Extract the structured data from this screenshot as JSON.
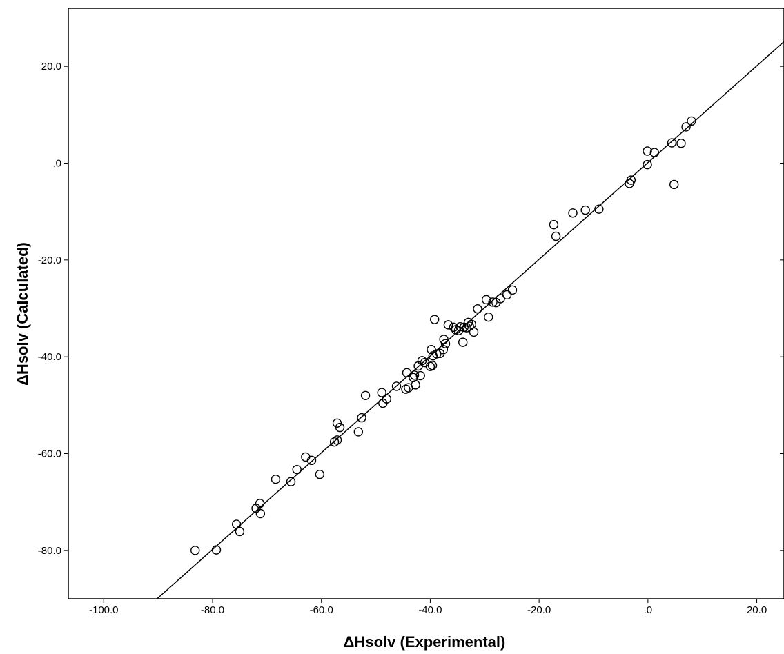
{
  "chart_data": {
    "type": "scatter",
    "title": "",
    "xlabel": "ΔHsolv (Experimental)",
    "ylabel": "ΔHsolv (Calculated)",
    "xlim": [
      -106.5,
      25.0
    ],
    "ylim": [
      -90.0,
      32.0
    ],
    "xticks": [
      -100,
      -80,
      -60,
      -40,
      -20,
      0,
      20
    ],
    "xtick_labels": [
      "-100.0",
      "-80.0",
      "-60.0",
      "-40.0",
      "-20.0",
      ".0",
      "20.0"
    ],
    "yticks": [
      -80,
      -60,
      -40,
      -20,
      0,
      20
    ],
    "ytick_labels": [
      "-80.0",
      "-60.0",
      "-40.0",
      "-20.0",
      ".0",
      "20.0"
    ],
    "grid": false,
    "marker": "open-circle",
    "fit_line": {
      "x": [
        -90.2,
        25.0
      ],
      "y": [
        -90.0,
        25.1
      ]
    },
    "points": [
      {
        "x": -83.2,
        "y": -80.0
      },
      {
        "x": -79.3,
        "y": -79.9
      },
      {
        "x": -75.6,
        "y": -74.6
      },
      {
        "x": -75.0,
        "y": -76.1
      },
      {
        "x": -72.0,
        "y": -71.3
      },
      {
        "x": -71.3,
        "y": -70.3
      },
      {
        "x": -71.2,
        "y": -72.4
      },
      {
        "x": -68.4,
        "y": -65.3
      },
      {
        "x": -65.6,
        "y": -65.8
      },
      {
        "x": -64.5,
        "y": -63.3
      },
      {
        "x": -62.9,
        "y": -60.7
      },
      {
        "x": -61.8,
        "y": -61.4
      },
      {
        "x": -60.3,
        "y": -64.3
      },
      {
        "x": -57.6,
        "y": -57.6
      },
      {
        "x": -57.1,
        "y": -57.2
      },
      {
        "x": -57.1,
        "y": -53.7
      },
      {
        "x": -56.6,
        "y": -54.6
      },
      {
        "x": -53.2,
        "y": -55.5
      },
      {
        "x": -52.6,
        "y": -52.6
      },
      {
        "x": -51.9,
        "y": -48.0
      },
      {
        "x": -48.9,
        "y": -47.4
      },
      {
        "x": -48.7,
        "y": -49.6
      },
      {
        "x": -48.0,
        "y": -48.7
      },
      {
        "x": -46.2,
        "y": -46.1
      },
      {
        "x": -44.5,
        "y": -46.7
      },
      {
        "x": -44.3,
        "y": -43.3
      },
      {
        "x": -44.0,
        "y": -46.4
      },
      {
        "x": -43.1,
        "y": -44.3
      },
      {
        "x": -42.9,
        "y": -43.8
      },
      {
        "x": -42.7,
        "y": -45.8
      },
      {
        "x": -42.2,
        "y": -41.9
      },
      {
        "x": -41.8,
        "y": -43.9
      },
      {
        "x": -41.5,
        "y": -40.8
      },
      {
        "x": -41.0,
        "y": -41.2
      },
      {
        "x": -40.0,
        "y": -42.0
      },
      {
        "x": -39.8,
        "y": -38.5
      },
      {
        "x": -39.6,
        "y": -41.8
      },
      {
        "x": -39.5,
        "y": -39.8
      },
      {
        "x": -39.2,
        "y": -32.3
      },
      {
        "x": -38.8,
        "y": -39.4
      },
      {
        "x": -38.2,
        "y": -39.3
      },
      {
        "x": -37.6,
        "y": -38.5
      },
      {
        "x": -37.5,
        "y": -36.4
      },
      {
        "x": -37.2,
        "y": -37.3
      },
      {
        "x": -36.7,
        "y": -33.4
      },
      {
        "x": -35.7,
        "y": -33.9
      },
      {
        "x": -35.3,
        "y": -34.4
      },
      {
        "x": -34.8,
        "y": -34.6
      },
      {
        "x": -34.5,
        "y": -33.8
      },
      {
        "x": -34.0,
        "y": -37.0
      },
      {
        "x": -33.8,
        "y": -33.9
      },
      {
        "x": -33.3,
        "y": -34.0
      },
      {
        "x": -33.0,
        "y": -32.9
      },
      {
        "x": -32.8,
        "y": -33.7
      },
      {
        "x": -32.4,
        "y": -33.3
      },
      {
        "x": -32.0,
        "y": -34.9
      },
      {
        "x": -31.3,
        "y": -30.1
      },
      {
        "x": -29.7,
        "y": -28.2
      },
      {
        "x": -29.3,
        "y": -31.8
      },
      {
        "x": -28.5,
        "y": -28.7
      },
      {
        "x": -27.9,
        "y": -28.8
      },
      {
        "x": -27.1,
        "y": -28.0
      },
      {
        "x": -25.9,
        "y": -27.2
      },
      {
        "x": -24.9,
        "y": -26.2
      },
      {
        "x": -17.3,
        "y": -12.7
      },
      {
        "x": -16.9,
        "y": -15.1
      },
      {
        "x": -13.8,
        "y": -10.3
      },
      {
        "x": -11.5,
        "y": -9.7
      },
      {
        "x": -9.0,
        "y": -9.5
      },
      {
        "x": -3.4,
        "y": -4.2
      },
      {
        "x": -3.1,
        "y": -3.5
      },
      {
        "x": -0.1,
        "y": -0.3
      },
      {
        "x": -0.1,
        "y": 2.5
      },
      {
        "x": 1.2,
        "y": 2.2
      },
      {
        "x": 4.4,
        "y": 4.2
      },
      {
        "x": 4.8,
        "y": -4.4
      },
      {
        "x": 6.1,
        "y": 4.1
      },
      {
        "x": 7.0,
        "y": 7.5
      },
      {
        "x": 8.0,
        "y": 8.7
      }
    ]
  }
}
